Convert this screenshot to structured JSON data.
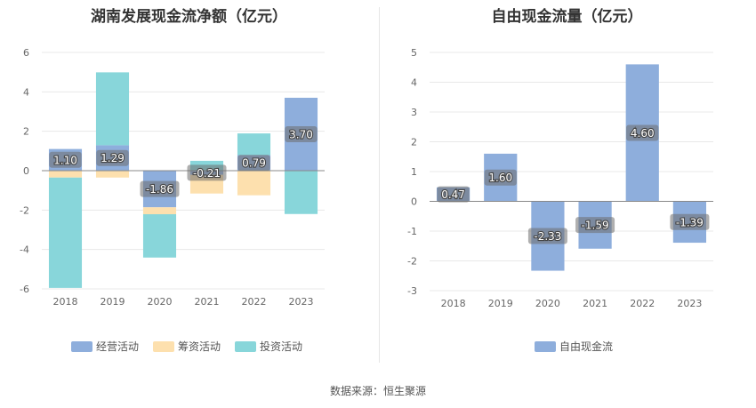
{
  "left_chart": {
    "title": "湖南发展现金流净额（亿元）",
    "chart_data": {
      "type": "bar",
      "stacked": true,
      "categories": [
        "2018",
        "2019",
        "2020",
        "2021",
        "2022",
        "2023"
      ],
      "series": [
        {
          "name": "经营活动",
          "color": "#8eaedc",
          "values": [
            1.1,
            1.29,
            -1.86,
            -0.21,
            0.79,
            3.7
          ],
          "labels": [
            "1.10",
            "1.29",
            "-1.86",
            "-0.21",
            "0.79",
            "3.70"
          ]
        },
        {
          "name": "筹资活动",
          "color": "#fde0ae",
          "values": [
            -0.35,
            -0.35,
            -0.35,
            -0.95,
            -1.25,
            0
          ]
        },
        {
          "name": "投资活动",
          "color": "#88d6da",
          "values": [
            -5.6,
            3.7,
            -2.2,
            0.5,
            1.1,
            -2.2
          ]
        }
      ],
      "ylim": [
        -6,
        6
      ],
      "yticks": [
        "-6",
        "-4",
        "-2",
        "0",
        "2",
        "4",
        "6"
      ],
      "grid": true,
      "legend": "bottom"
    }
  },
  "right_chart": {
    "title": "自由现金流量（亿元）",
    "chart_data": {
      "type": "bar",
      "categories": [
        "2018",
        "2019",
        "2020",
        "2021",
        "2022",
        "2023"
      ],
      "series": [
        {
          "name": "自由现金流",
          "color": "#8eaedc",
          "values": [
            0.47,
            1.6,
            -2.33,
            -1.59,
            4.6,
            -1.39
          ],
          "labels": [
            "0.47",
            "1.60",
            "-2.33",
            "-1.59",
            "4.60",
            "-1.39"
          ]
        }
      ],
      "ylim": [
        -3,
        5
      ],
      "yticks": [
        "-3",
        "-2",
        "-1",
        "0",
        "1",
        "2",
        "3",
        "4",
        "5"
      ],
      "grid": true,
      "legend": "bottom"
    }
  },
  "footer": {
    "source": "数据来源：恒生聚源"
  }
}
